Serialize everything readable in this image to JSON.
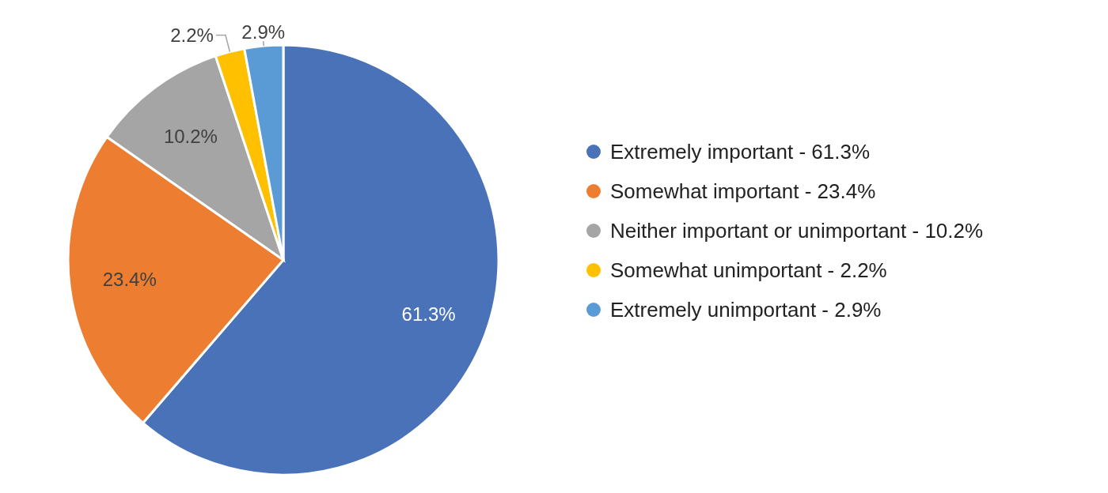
{
  "chart_data": {
    "type": "pie",
    "categories": [
      "Extremely important - 61.3%",
      "Somewhat important - 23.4%",
      "Neither important or unimportant - 10.2%",
      "Somewhat unimportant - 2.2%",
      "Extremely unimportant - 2.9%"
    ],
    "values": [
      61.3,
      23.4,
      10.2,
      2.2,
      2.9
    ],
    "colors": [
      "#4a72b8",
      "#ed7d31",
      "#a5a5a5",
      "#ffc000",
      "#5b9bd5"
    ],
    "value_labels": [
      "61.3%",
      "23.4%",
      "10.2%",
      "2.2%",
      "2.9%"
    ],
    "legend": "right"
  }
}
